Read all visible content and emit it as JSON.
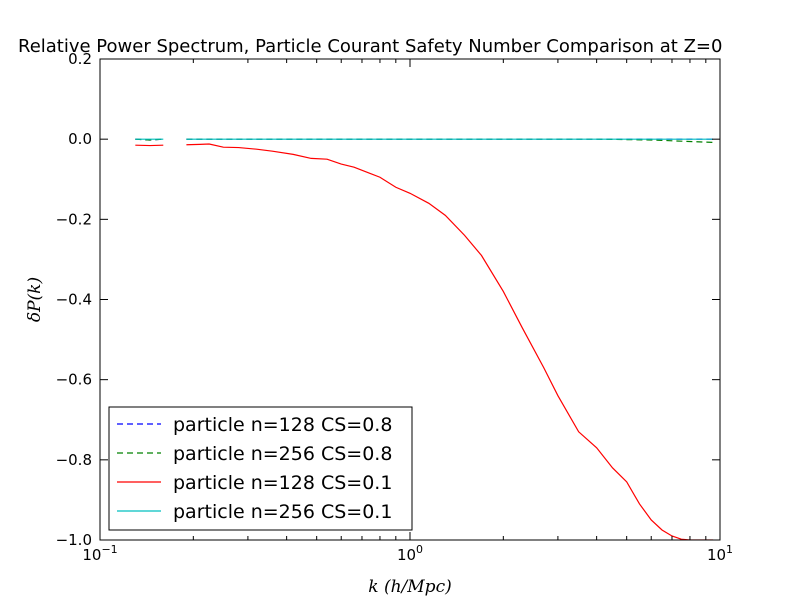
{
  "chart_data": {
    "type": "line",
    "title": "Relative Power Spectrum, Particle Courant Safety Number Comparison at Z=0",
    "xlabel": "k (h/Mpc)",
    "ylabel": "δP(k)",
    "xscale": "log",
    "xlim": [
      0.1,
      10
    ],
    "ylim": [
      -1.0,
      0.2
    ],
    "x_ticks": [
      {
        "value": 0.1,
        "base": "10",
        "exp": "−1"
      },
      {
        "value": 1,
        "base": "10",
        "exp": "0"
      },
      {
        "value": 10,
        "base": "10",
        "exp": "1"
      }
    ],
    "y_ticks": [
      {
        "value": 0.2,
        "label": "0.2"
      },
      {
        "value": 0.0,
        "label": "0.0"
      },
      {
        "value": -0.2,
        "label": "−0.2"
      },
      {
        "value": -0.4,
        "label": "−0.4"
      },
      {
        "value": -0.6,
        "label": "−0.6"
      },
      {
        "value": -0.8,
        "label": "−0.8"
      },
      {
        "value": -1.0,
        "label": "−1.0"
      }
    ],
    "grid": false,
    "legend_position": "lower-left",
    "series": [
      {
        "name": "particle n=128 CS=0.8",
        "color": "#0000ff",
        "dash": "dashed",
        "segments": [
          [
            [
              0.13,
              0.0
            ],
            [
              0.145,
              -0.002
            ],
            [
              0.16,
              0.0
            ]
          ],
          [
            [
              0.19,
              0.0
            ],
            [
              0.3,
              0.0
            ],
            [
              0.5,
              0.0
            ],
            [
              1.0,
              0.0
            ],
            [
              2.0,
              0.0
            ],
            [
              4.0,
              0.0
            ],
            [
              7.0,
              0.0
            ],
            [
              9.5,
              0.0
            ]
          ]
        ]
      },
      {
        "name": "particle n=256 CS=0.8",
        "color": "#008000",
        "dash": "dashed",
        "segments": [
          [
            [
              0.13,
              0.0
            ],
            [
              0.145,
              -0.002
            ],
            [
              0.16,
              0.0
            ]
          ],
          [
            [
              0.19,
              0.0
            ],
            [
              0.3,
              0.0
            ],
            [
              0.5,
              0.0
            ],
            [
              1.0,
              0.0
            ],
            [
              2.0,
              0.0
            ],
            [
              4.0,
              0.0
            ],
            [
              6.0,
              -0.002
            ],
            [
              7.5,
              -0.005
            ],
            [
              9.5,
              -0.008
            ]
          ]
        ]
      },
      {
        "name": "particle n=128 CS=0.1",
        "color": "#ff0000",
        "dash": "solid",
        "segments": [
          [
            [
              0.13,
              -0.015
            ],
            [
              0.145,
              -0.016
            ],
            [
              0.16,
              -0.015
            ]
          ],
          [
            [
              0.19,
              -0.014
            ],
            [
              0.21,
              -0.013
            ],
            [
              0.225,
              -0.012
            ],
            [
              0.25,
              -0.02
            ],
            [
              0.28,
              -0.021
            ],
            [
              0.32,
              -0.025
            ],
            [
              0.36,
              -0.03
            ],
            [
              0.42,
              -0.038
            ],
            [
              0.48,
              -0.048
            ],
            [
              0.54,
              -0.05
            ],
            [
              0.6,
              -0.062
            ],
            [
              0.66,
              -0.07
            ],
            [
              0.74,
              -0.085
            ],
            [
              0.8,
              -0.095
            ],
            [
              0.9,
              -0.12
            ],
            [
              1.0,
              -0.135
            ],
            [
              1.15,
              -0.16
            ],
            [
              1.3,
              -0.19
            ],
            [
              1.5,
              -0.24
            ],
            [
              1.7,
              -0.29
            ],
            [
              2.0,
              -0.38
            ],
            [
              2.3,
              -0.47
            ],
            [
              2.7,
              -0.57
            ],
            [
              3.0,
              -0.64
            ],
            [
              3.5,
              -0.73
            ],
            [
              4.0,
              -0.77
            ],
            [
              4.5,
              -0.82
            ],
            [
              5.0,
              -0.855
            ],
            [
              5.5,
              -0.91
            ],
            [
              6.0,
              -0.95
            ],
            [
              6.5,
              -0.975
            ],
            [
              7.0,
              -0.99
            ],
            [
              7.5,
              -0.998
            ],
            [
              8.0,
              -1.0
            ],
            [
              9.5,
              -1.0
            ]
          ]
        ]
      },
      {
        "name": "particle n=256 CS=0.1",
        "color": "#00bfbf",
        "dash": "solid",
        "segments": [
          [
            [
              0.13,
              0.0
            ],
            [
              0.145,
              0.0
            ],
            [
              0.16,
              0.0
            ]
          ],
          [
            [
              0.19,
              0.0
            ],
            [
              0.5,
              0.0
            ],
            [
              1.0,
              0.0
            ],
            [
              3.0,
              0.0
            ],
            [
              6.0,
              0.0
            ],
            [
              9.5,
              0.0
            ]
          ]
        ]
      }
    ]
  }
}
